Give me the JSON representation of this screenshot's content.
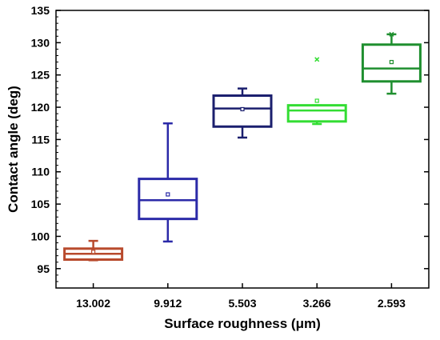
{
  "chart_data": {
    "type": "box",
    "xlabel": "Surface roughness (μm)",
    "ylabel": "Contact angle (deg)",
    "ylim": [
      92,
      135
    ],
    "y_ticks": [
      95,
      100,
      105,
      110,
      115,
      120,
      125,
      130,
      135
    ],
    "categories": [
      "13.002",
      "9.912",
      "5.503",
      "3.266",
      "2.593"
    ],
    "boxes": [
      {
        "category": "13.002",
        "color": "#b84a2d",
        "whisker_low": 96.3,
        "q1": 96.4,
        "median": 97.3,
        "q3": 98.1,
        "whisker_high": 99.3,
        "mean": 97.6,
        "outliers": []
      },
      {
        "category": "9.912",
        "color": "#2b2aa8",
        "whisker_low": 99.2,
        "q1": 102.7,
        "median": 105.6,
        "q3": 108.9,
        "whisker_high": 117.5,
        "mean": 106.5,
        "outliers": []
      },
      {
        "category": "5.503",
        "color": "#1b1f6e",
        "whisker_low": 115.3,
        "q1": 117.0,
        "median": 119.8,
        "q3": 121.8,
        "whisker_high": 122.9,
        "mean": 119.7,
        "outliers": []
      },
      {
        "category": "3.266",
        "color": "#33dd33",
        "whisker_low": 117.4,
        "q1": 117.8,
        "median": 119.5,
        "q3": 120.3,
        "whisker_high": 120.3,
        "mean": 121.0,
        "outliers": [
          127.4
        ]
      },
      {
        "category": "2.593",
        "color": "#1f8f2f",
        "whisker_low": 122.1,
        "q1": 124.0,
        "median": 126.0,
        "q3": 129.7,
        "whisker_high": 131.3,
        "mean": 127.0,
        "outliers": [
          131.3
        ]
      }
    ]
  }
}
